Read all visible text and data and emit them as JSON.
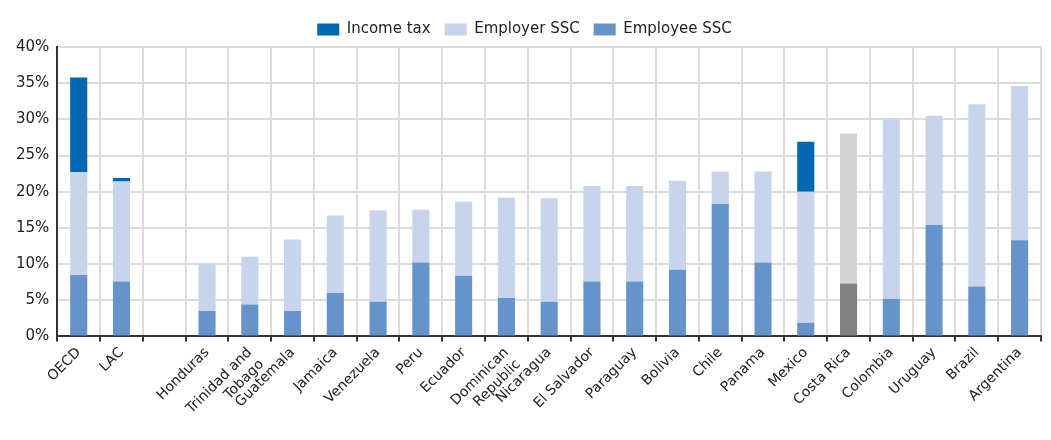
{
  "chart_data": {
    "type": "bar",
    "stacked": true,
    "legend": "top",
    "grid": true,
    "categories": [
      "OECD",
      "LAC",
      null,
      "Honduras",
      "Trinidad and Tobago",
      "Guatemala",
      "Jamaica",
      "Venezuela",
      "Peru",
      "Ecuador",
      "Dominican Republic",
      "Nicaragua",
      "El Salvador",
      "Paraguay",
      "Bolivia",
      "Chile",
      "Panama",
      "Mexico",
      "Costa Rica",
      "Colombia",
      "Uruguay",
      "Brazil",
      "Argentina"
    ],
    "ylim": [
      0,
      40
    ],
    "yticks": [
      {
        "value": 0,
        "label": "0%"
      },
      {
        "value": 5,
        "label": "5%"
      },
      {
        "value": 10,
        "label": "10%"
      },
      {
        "value": 15,
        "label": "15%"
      },
      {
        "value": 20,
        "label": "20%"
      },
      {
        "value": 25,
        "label": "25%"
      },
      {
        "value": 30,
        "label": "30%"
      },
      {
        "value": 35,
        "label": "35%"
      },
      {
        "value": 40,
        "label": "40%"
      }
    ],
    "series": [
      {
        "name": "Employee SSC",
        "color": "#6693ca",
        "colors": [
          "#6693ca",
          "#6693ca",
          "#6693ca",
          "#6693ca",
          "#6693ca",
          "#6693ca",
          "#6693ca",
          "#6693ca",
          "#6693ca",
          "#6693ca",
          "#6693ca",
          "#6693ca",
          "#6693ca",
          "#6693ca",
          "#6693ca",
          "#6693ca",
          "#6693ca",
          "#6693ca",
          "#808184",
          "#6693ca",
          "#6693ca",
          "#6693ca",
          "#6693ca"
        ],
        "values": [
          8.5,
          7.6,
          null,
          3.5,
          4.4,
          3.5,
          6.0,
          4.8,
          10.2,
          8.4,
          5.3,
          4.8,
          7.6,
          7.6,
          9.2,
          18.3,
          10.2,
          1.9,
          7.3,
          5.2,
          15.4,
          6.9,
          13.3
        ]
      },
      {
        "name": "Employer SSC",
        "color": "#c8d4eb",
        "colors": [
          "#c8d4eb",
          "#c8d4eb",
          "#c8d4eb",
          "#c8d4eb",
          "#c8d4eb",
          "#c8d4eb",
          "#c8d4eb",
          "#c8d4eb",
          "#c8d4eb",
          "#c8d4eb",
          "#c8d4eb",
          "#c8d4eb",
          "#c8d4eb",
          "#c8d4eb",
          "#c8d4eb",
          "#c8d4eb",
          "#c8d4eb",
          "#c8d4eb",
          "#d3d4d6",
          "#c8d4eb",
          "#c8d4eb",
          "#c8d4eb",
          "#c8d4eb"
        ],
        "values": [
          14.2,
          13.8,
          null,
          6.6,
          6.6,
          9.9,
          10.7,
          12.6,
          7.3,
          10.2,
          13.9,
          14.3,
          13.2,
          13.2,
          12.3,
          4.5,
          12.6,
          18.1,
          20.7,
          24.9,
          15.1,
          25.2,
          21.3
        ]
      },
      {
        "name": "Income tax",
        "color": "#0068b3",
        "values": [
          13.1,
          0.5,
          null,
          null,
          null,
          null,
          null,
          null,
          null,
          null,
          null,
          null,
          null,
          null,
          null,
          null,
          null,
          6.9,
          null,
          null,
          null,
          null,
          null
        ]
      }
    ]
  }
}
